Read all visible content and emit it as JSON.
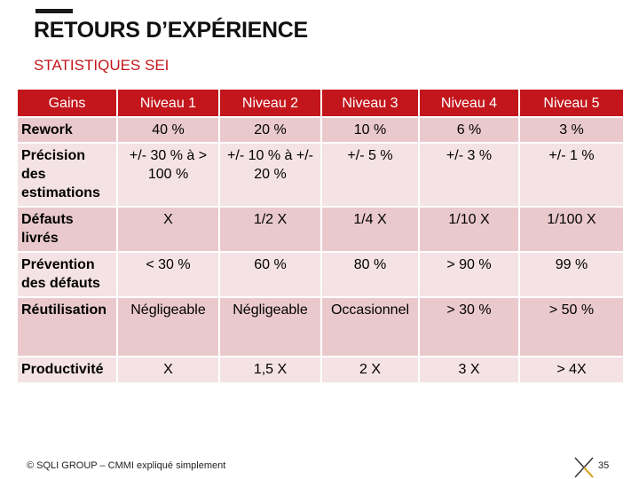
{
  "slide": {
    "title": "RETOURS D’EXPÉRIENCE",
    "subtitle": "STATISTIQUES SEI",
    "footer": "© SQLI GROUP – CMMI expliqué simplement",
    "page_number": "35"
  },
  "table": {
    "headers": [
      "Gains",
      "Niveau 1",
      "Niveau 2",
      "Niveau 3",
      "Niveau 4",
      "Niveau 5"
    ],
    "rows": [
      {
        "label": "Rework",
        "cells": [
          "40 %",
          "20 %",
          "10 %",
          "6 %",
          "3 %"
        ]
      },
      {
        "label": "Précision des estimations",
        "cells": [
          "+/- 30 % à > 100 %",
          "+/- 10 % à +/- 20 %",
          "+/- 5 %",
          "+/- 3 %",
          "+/- 1 %"
        ]
      },
      {
        "label": "Défauts livrés",
        "cells": [
          "X",
          "1/2 X",
          "1/4 X",
          "1/10 X",
          "1/100 X"
        ]
      },
      {
        "label": "Prévention des défauts",
        "cells": [
          "< 30 %",
          "60 %",
          "80 %",
          "> 90 %",
          "99 %"
        ]
      },
      {
        "label": "Réutilisation",
        "cells": [
          "Négligeable",
          "Négligeable",
          "Occasionnel",
          "> 30 %",
          "> 50 %"
        ]
      },
      {
        "label": "Productivité",
        "cells": [
          "X",
          "1,5 X",
          "2 X",
          "3 X",
          "> 4X"
        ]
      }
    ]
  },
  "colors": {
    "accent": "#c3161c",
    "row_dark": "#eac9cc",
    "row_light": "#f4e2e4"
  },
  "icons": {
    "logo": "sqli-cross-logo-icon"
  }
}
